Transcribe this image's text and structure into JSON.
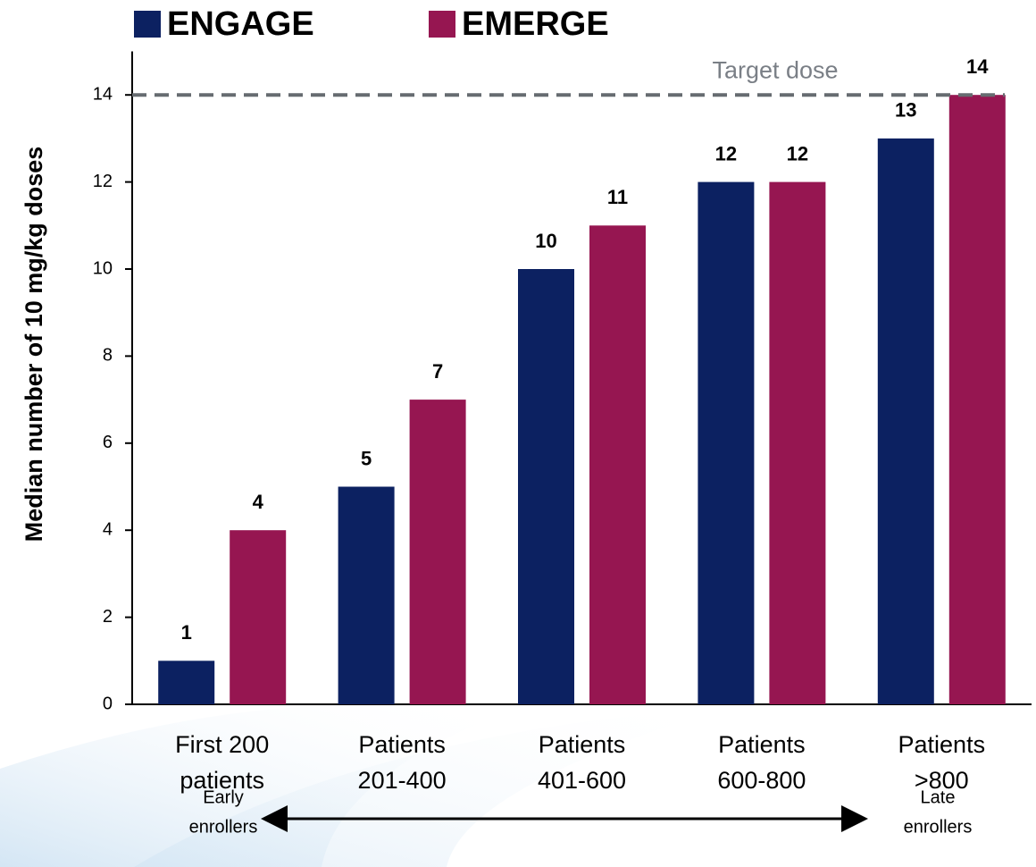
{
  "chart_data": {
    "type": "bar",
    "y_label": "Median number of 10 mg/kg doses",
    "categories": [
      [
        "First 200",
        "patients"
      ],
      [
        "Patients",
        "201-400"
      ],
      [
        "Patients",
        "401-600"
      ],
      [
        "Patients",
        "600-800"
      ],
      [
        "Patients",
        ">800"
      ]
    ],
    "series": [
      {
        "name": "ENGAGE",
        "color": "#0c2161",
        "values": [
          1,
          5,
          10,
          12,
          13
        ]
      },
      {
        "name": "EMERGE",
        "color": "#961651",
        "values": [
          4,
          7,
          11,
          12,
          14
        ]
      }
    ],
    "ylim": [
      0,
      15
    ],
    "yticks": [
      0,
      2,
      4,
      6,
      8,
      10,
      12,
      14
    ],
    "legend": "top-left",
    "target": {
      "label": "Target dose",
      "value": 14
    },
    "early_label": [
      "Early",
      "enrollers"
    ],
    "late_label": [
      "Late",
      "enrollers"
    ]
  }
}
